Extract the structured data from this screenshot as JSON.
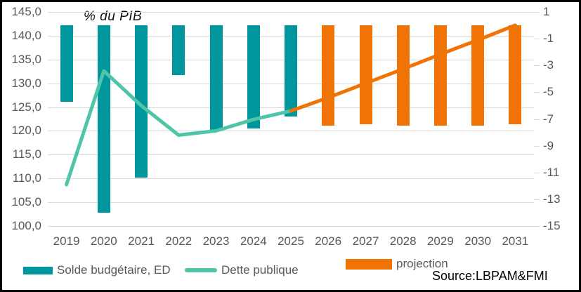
{
  "title": "% du PIB",
  "source": "Source:LBPAM&FMI",
  "legend": [
    {
      "label": "Solde budgétaire, ED",
      "swatch": "bar",
      "color": "#00969E"
    },
    {
      "label": "Dette publique",
      "swatch": "line",
      "color": "#4FC5A8"
    },
    {
      "label": "projection",
      "swatch": "bar",
      "color": "#F07306"
    }
  ],
  "colors": {
    "teal_bar": "#00969E",
    "green_line": "#4FC5A8",
    "orange_projection": "#F07306",
    "gridline": "#D9D9D9",
    "axis_text": "#595959",
    "text": "#000000"
  },
  "chart_data": {
    "type": "bar",
    "subtype": "combo dual-axis: bars (right axis) + line (left axis), projection period in orange",
    "title": "% du PIB",
    "categories": [
      2019,
      2020,
      2021,
      2022,
      2023,
      2024,
      2025,
      2026,
      2027,
      2028,
      2029,
      2030,
      2031
    ],
    "left_axis": {
      "ticks": [
        "100,0",
        "105,0",
        "110,0",
        "115,0",
        "120,0",
        "125,0",
        "130,0",
        "135,0",
        "140,0",
        "145,0"
      ],
      "range": [
        100,
        145
      ],
      "applies_to": "Dette publique"
    },
    "right_axis": {
      "ticks": [
        "1",
        "-1",
        "-3",
        "-5",
        "-7",
        "-9",
        "-11",
        "-13",
        "-15"
      ],
      "range": [
        -15,
        1
      ],
      "applies_to": "Solde budgétaire, ED"
    },
    "grid": true,
    "legend_position": "bottom",
    "series": [
      {
        "name": "Solde budgétaire, ED",
        "type": "bar",
        "axis": "right",
        "color": "#00969E",
        "values": [
          -5.7,
          -14.0,
          -11.4,
          -3.7,
          -7.8,
          -7.7,
          -6.8,
          null,
          null,
          null,
          null,
          null,
          null
        ]
      },
      {
        "name": "projection",
        "type": "bar",
        "axis": "right",
        "color": "#F07306",
        "values": [
          null,
          null,
          null,
          null,
          null,
          null,
          null,
          -7.5,
          -7.4,
          -7.5,
          -7.5,
          -7.5,
          -7.4
        ]
      },
      {
        "name": "Dette publique",
        "type": "line",
        "axis": "left",
        "color": "#4FC5A8",
        "values": [
          108.7,
          132.6,
          125.3,
          119.1,
          120.0,
          122.4,
          124.2,
          null,
          null,
          null,
          null,
          null,
          null
        ]
      },
      {
        "name": "Dette publique (projection)",
        "type": "line",
        "axis": "left",
        "color": "#F07306",
        "values": [
          null,
          null,
          null,
          null,
          null,
          null,
          124.2,
          127.0,
          130.0,
          133.0,
          136.1,
          139.1,
          142.2
        ]
      }
    ]
  }
}
